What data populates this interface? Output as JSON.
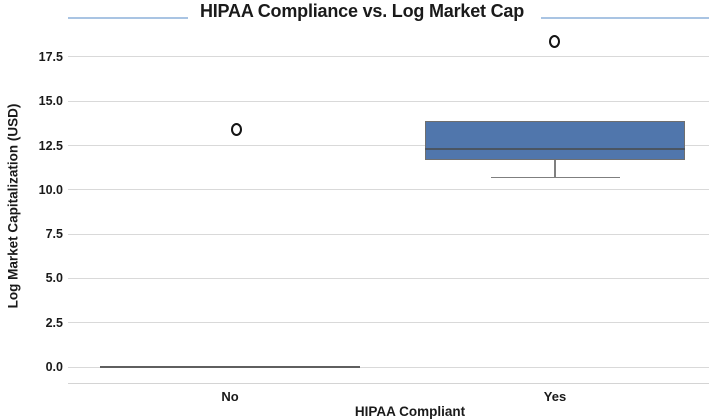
{
  "chart_data": {
    "type": "boxplot",
    "title": "HIPAA Compliance vs. Log Market Cap",
    "xlabel": "HIPAA Compliant",
    "ylabel": "Log Market Capitalization (USD)",
    "categories": [
      "No",
      "Yes"
    ],
    "y_ticks": [
      {
        "value": 17.5,
        "label": "17.5"
      },
      {
        "value": 15.0,
        "label": "15.0"
      },
      {
        "value": 12.5,
        "label": "12.5"
      },
      {
        "value": 10.0,
        "label": "10.0"
      },
      {
        "value": 7.5,
        "label": "7.5"
      },
      {
        "value": 5.0,
        "label": "5.0"
      },
      {
        "value": 2.5,
        "label": "2.5"
      },
      {
        "value": 0.0,
        "label": "0.0"
      }
    ],
    "ylim": [
      -0.9,
      19.7
    ],
    "grid": true,
    "legend": null,
    "series": [
      {
        "category": "No",
        "q1": 0.0,
        "median": 0.0,
        "q3": 0.0,
        "whisker_low": 0.0,
        "whisker_high": 0.0,
        "outliers": [
          13.4
        ]
      },
      {
        "category": "Yes",
        "q1": 11.7,
        "median": 12.3,
        "q3": 13.9,
        "whisker_low": 10.7,
        "whisker_high": 13.9,
        "outliers": [
          18.4
        ]
      }
    ],
    "colors": {
      "box_fill": "#5076ac",
      "box_border": "#6f6f6f",
      "median_line": "#4a5563",
      "collapsed_box_line": "#5f5f5f",
      "whisker": "#7f7f7f",
      "gridline": "#d9d9d9",
      "bottom_spine": "#d4d4d4",
      "top_spine": "#a9c4e3",
      "outlier_edge": "#141414",
      "text": "#1a1a1a"
    }
  }
}
